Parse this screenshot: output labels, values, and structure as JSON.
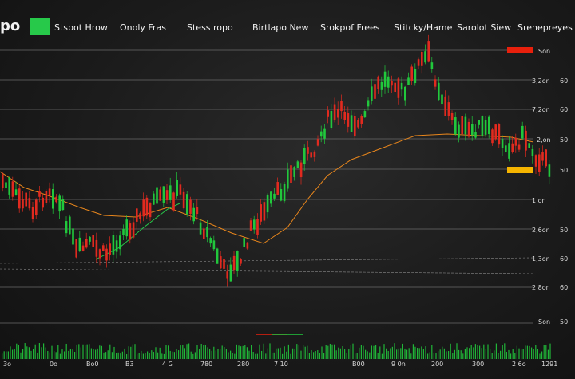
{
  "header": {
    "brand": "po",
    "accent_color": "#27c94a",
    "tabs": [
      {
        "label": "Stspot Hrow"
      },
      {
        "label": "Onoly Fras"
      },
      {
        "label": "Stess ropo"
      },
      {
        "label": "Birtlapo New"
      },
      {
        "label": "Srokpof Frees"
      },
      {
        "label": "Stitcky/Hame"
      },
      {
        "label": "Sarolot Siew"
      },
      {
        "label": "Srenepreyes"
      }
    ]
  },
  "right_axis": {
    "labels": [
      {
        "a": "Son",
        "b": ""
      },
      {
        "a": "3,2on",
        "b": "60"
      },
      {
        "a": "7,2on",
        "b": "60"
      },
      {
        "a": "2,on",
        "b": "50"
      },
      {
        "a": "",
        "b": "50"
      },
      {
        "a": "1,on",
        "b": ""
      },
      {
        "a": "2,6on",
        "b": "50"
      },
      {
        "a": "1,3on",
        "b": "60"
      },
      {
        "a": "2,8on",
        "b": "60"
      },
      {
        "a": "Son",
        "b": "50"
      }
    ]
  },
  "bottom_axis": {
    "labels": [
      "3o",
      "0o",
      "Bo0",
      "B3",
      "4 G",
      "780",
      "280",
      "7 10",
      "B00",
      "9 0n",
      "200",
      "300",
      "2 6o",
      "1291"
    ]
  },
  "colors": {
    "up": "#21c83c",
    "down": "#e12a1f",
    "ma_orange": "#e8861c",
    "ma_green": "#27c94a",
    "badge_red": "#e8200c",
    "badge_yellow": "#f5b400"
  }
}
